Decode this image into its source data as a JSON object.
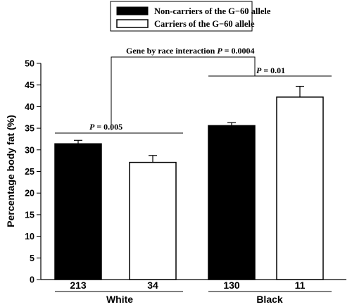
{
  "chart_data": {
    "type": "bar",
    "ylabel": "Percentage body fat (%)",
    "ylim": [
      0,
      50
    ],
    "yticks": [
      "0",
      "5",
      "10",
      "15",
      "20",
      "25",
      "30",
      "35",
      "40",
      "45",
      "50"
    ],
    "groups": [
      "White",
      "Black"
    ],
    "series": [
      {
        "name": "Non-carriers of the G−60 allele",
        "color": "#000000",
        "values": [
          31.4,
          35.6
        ],
        "errors": [
          0.8,
          0.7
        ],
        "n": [
          "213",
          "130"
        ]
      },
      {
        "name": "Carriers of the G−60 allele",
        "color": "#ffffff",
        "values": [
          27.1,
          42.2
        ],
        "errors": [
          1.6,
          2.5
        ],
        "n": [
          "34",
          "11"
        ]
      }
    ],
    "legend": {
      "placement": "top-center"
    },
    "annotations": {
      "white_p": {
        "prefix": "P",
        "text": " = 0.005"
      },
      "black_p": {
        "prefix": "P",
        "text": " = 0.01"
      },
      "interaction": {
        "text": "Gene by race interaction ",
        "prefix": "P",
        "suffix": " = 0.0004"
      }
    }
  }
}
